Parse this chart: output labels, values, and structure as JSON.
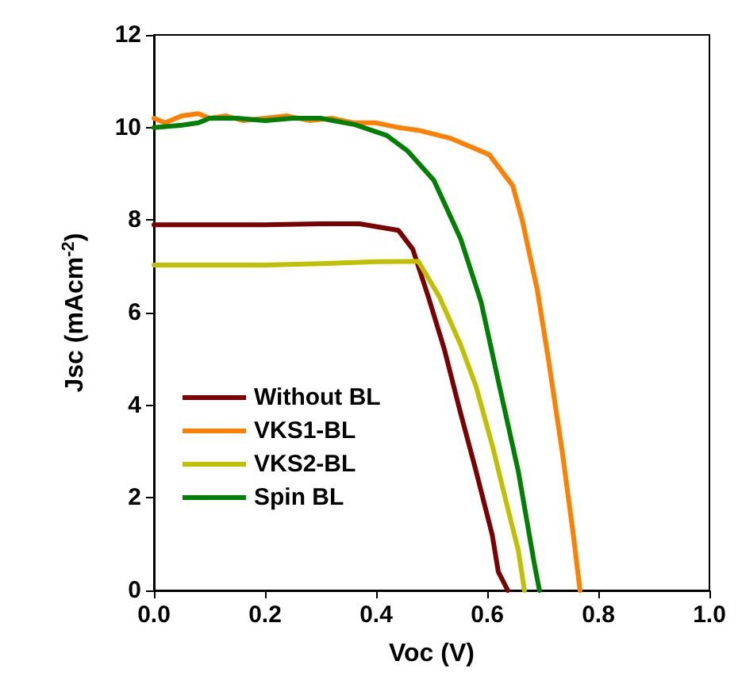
{
  "chart_data": {
    "type": "line",
    "xlabel": "Voc (V)",
    "ylabel": "Jsc (mAcm$^{-2}$)",
    "xlim": [
      0,
      1
    ],
    "xticks": [
      {
        "value": 0,
        "label": "0.0"
      },
      0.2,
      0.4,
      0.6,
      0.8,
      {
        "value": 1,
        "label": "1.0"
      }
    ],
    "ylim": [
      0,
      12
    ],
    "yticks": [
      0,
      2,
      4,
      6,
      8,
      10,
      12
    ],
    "grid": false,
    "legend": "left",
    "marker": "none",
    "line_style": "solid",
    "series": [
      {
        "name": "Without BL",
        "color": "#7b0000",
        "x": [
          0,
          0.1,
          0.2,
          0.3,
          0.37,
          0.44,
          0.466,
          0.494,
          0.523,
          0.552,
          0.58,
          0.609,
          0.62,
          0.637
        ],
        "values": [
          7.9,
          7.9,
          7.9,
          7.92,
          7.92,
          7.78,
          7.37,
          6.34,
          5.2,
          3.83,
          2.57,
          1.2,
          0.4,
          0
        ]
      },
      {
        "name": "VKS1-BL",
        "color": "#ff8000",
        "x": [
          0,
          0.02,
          0.05,
          0.08,
          0.1,
          0.13,
          0.16,
          0.2,
          0.24,
          0.28,
          0.32,
          0.36,
          0.4,
          0.44,
          0.476,
          0.533,
          0.589,
          0.604,
          0.646,
          0.663,
          0.69,
          0.71,
          0.735,
          0.755,
          0.767
        ],
        "values": [
          10.2,
          10.1,
          10.25,
          10.3,
          10.2,
          10.25,
          10.15,
          10.2,
          10.25,
          10.15,
          10.2,
          10.1,
          10.1,
          10.0,
          9.94,
          9.77,
          9.49,
          9.41,
          8.74,
          8.0,
          6.5,
          5.0,
          3.0,
          1.2,
          0
        ]
      },
      {
        "name": "VKS2-BL",
        "color": "#c0c000",
        "x": [
          0,
          0.1,
          0.2,
          0.3,
          0.4,
          0.476,
          0.514,
          0.552,
          0.58,
          0.609,
          0.637,
          0.656,
          0.667
        ],
        "values": [
          7.03,
          7.03,
          7.03,
          7.06,
          7.1,
          7.11,
          6.34,
          5.31,
          4.4,
          3.14,
          1.77,
          0.86,
          0
        ]
      },
      {
        "name": "Spin BL",
        "color": "#008000",
        "x": [
          0,
          0.05,
          0.08,
          0.1,
          0.15,
          0.2,
          0.25,
          0.3,
          0.362,
          0.419,
          0.457,
          0.504,
          0.552,
          0.589,
          0.618,
          0.656,
          0.684,
          0.694
        ],
        "values": [
          10.0,
          10.05,
          10.1,
          10.2,
          10.2,
          10.15,
          10.2,
          10.2,
          10.06,
          9.83,
          9.49,
          8.86,
          7.6,
          6.23,
          4.63,
          2.57,
          0.63,
          0
        ]
      }
    ]
  }
}
